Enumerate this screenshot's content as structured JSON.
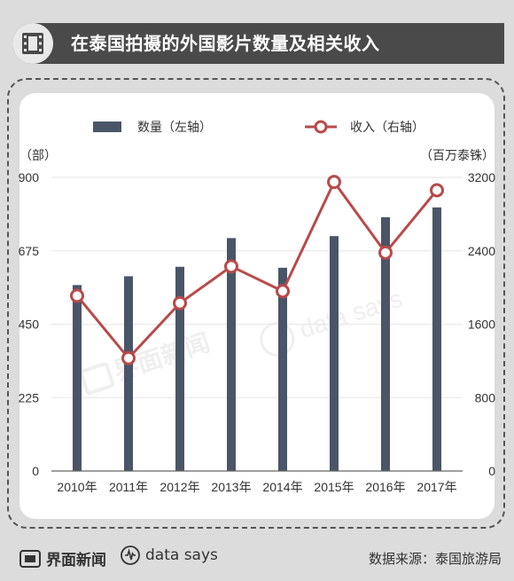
{
  "header": {
    "title": "在泰国拍摄的外国影片数量及相关收入",
    "icon": "film-icon"
  },
  "chart_data": {
    "type": "bar",
    "title": "在泰国拍摄的外国影片数量及相关收入",
    "categories": [
      "2010年",
      "2011年",
      "2012年",
      "2013年",
      "2014年",
      "2015年",
      "2016年",
      "2017年"
    ],
    "series": [
      {
        "name": "数量（左轴）",
        "type": "bar",
        "axis": "left",
        "color": "#4a5568",
        "values": [
          570,
          597,
          626,
          714,
          623,
          720,
          778,
          808
        ]
      },
      {
        "name": "收入（右轴）",
        "type": "line",
        "axis": "right",
        "color": "#b84a4a",
        "values": [
          1910,
          1230,
          1830,
          2230,
          1960,
          3150,
          2380,
          3060
        ]
      }
    ],
    "left_axis": {
      "label": "（部）",
      "ticks": [
        "0",
        "225",
        "450",
        "675",
        "900"
      ],
      "range": [
        0,
        900
      ]
    },
    "right_axis": {
      "label": "（百万泰铢）",
      "ticks": [
        "0",
        "800",
        "1600",
        "2400",
        "3200"
      ],
      "range": [
        0,
        3200
      ]
    },
    "legend": {
      "position": "top"
    },
    "grid": true
  },
  "watermark": {
    "brand": "界面新闻",
    "sub": "data says"
  },
  "footer": {
    "brand": "界面新闻",
    "sub_brand": "data says",
    "source": "数据来源：泰国旅游局"
  }
}
